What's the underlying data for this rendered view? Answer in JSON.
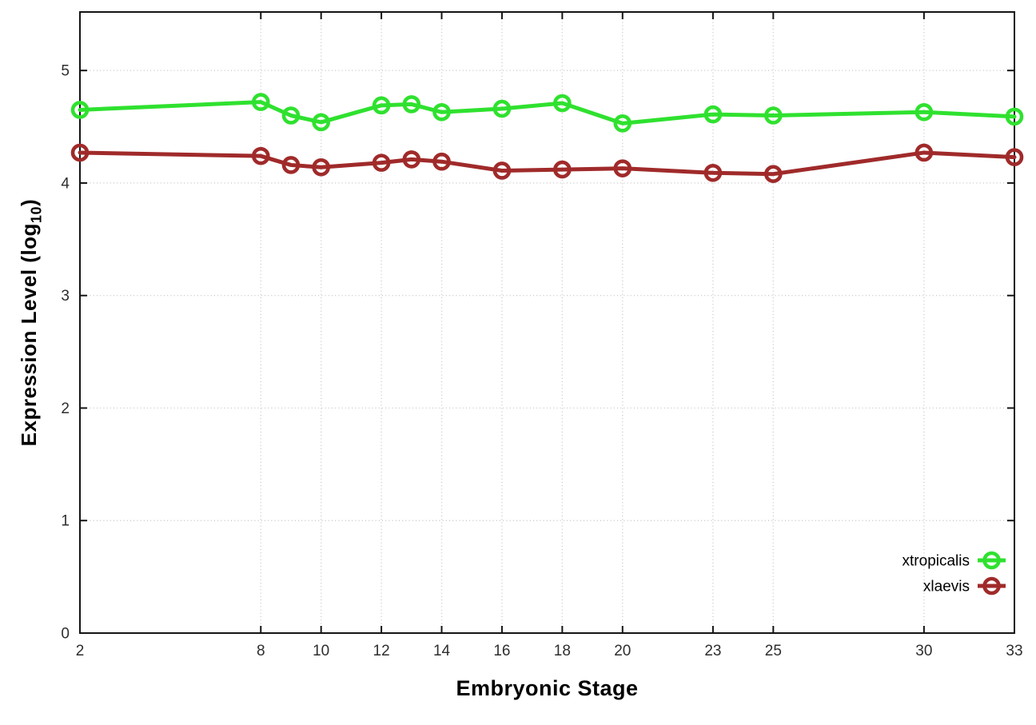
{
  "chart_data": {
    "type": "line",
    "title": "",
    "xlabel": "Embryonic Stage",
    "ylabel": "Expression Level (log10)",
    "ylabel_main": "Expression Level (log",
    "ylabel_sub": "10",
    "ylabel_close": ")",
    "x": [
      2,
      8,
      9,
      10,
      12,
      13,
      14,
      16,
      18,
      20,
      23,
      25,
      30,
      33
    ],
    "xticks": [
      2,
      8,
      10,
      12,
      14,
      16,
      18,
      20,
      23,
      25,
      30,
      33
    ],
    "yticks": [
      0,
      1,
      2,
      3,
      4,
      5
    ],
    "xlim": [
      2,
      33
    ],
    "ylim": [
      0,
      5.52
    ],
    "grid": true,
    "marker": "open-circle",
    "legend_position": "inside-bottom-right",
    "series": [
      {
        "name": "xtropicalis",
        "color": "#2fe12f",
        "values": [
          4.65,
          4.72,
          4.6,
          4.54,
          4.69,
          4.7,
          4.63,
          4.66,
          4.71,
          4.53,
          4.61,
          4.6,
          4.63,
          4.59
        ]
      },
      {
        "name": "xlaevis",
        "color": "#a02a2a",
        "values": [
          4.27,
          4.24,
          4.16,
          4.14,
          4.18,
          4.21,
          4.19,
          4.11,
          4.12,
          4.13,
          4.09,
          4.08,
          4.27,
          4.23
        ]
      }
    ]
  },
  "colors": {
    "background": "#ffffff",
    "axis_border": "#141414",
    "grid_line": "#c9c9c9",
    "tick_label": "#2e2e2e",
    "axis_label": "#000000"
  }
}
